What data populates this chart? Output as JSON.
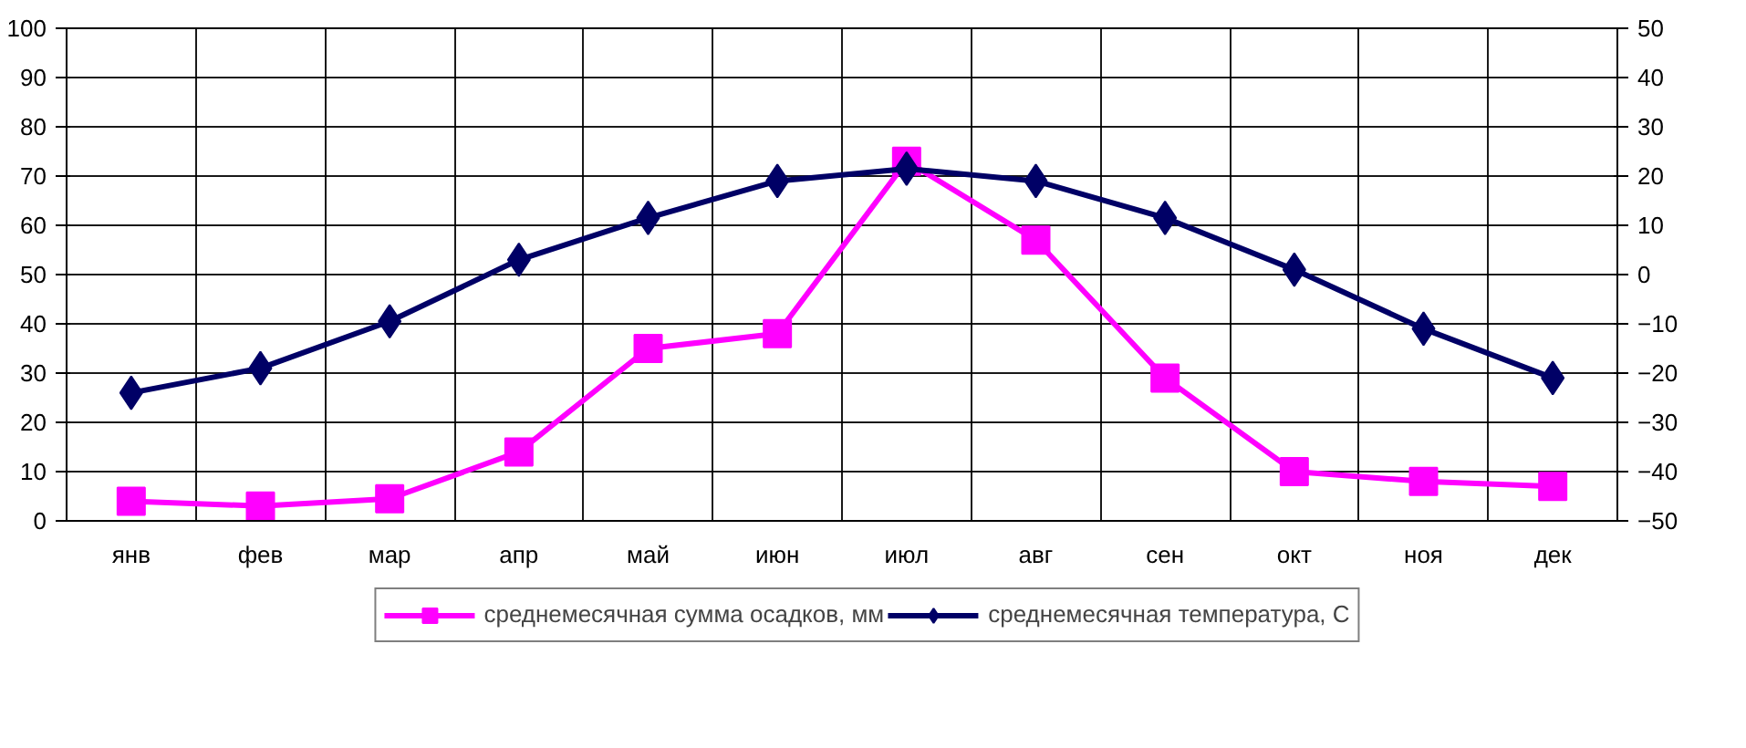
{
  "chart_data": {
    "type": "line",
    "categories": [
      "янв",
      "фев",
      "мар",
      "апр",
      "май",
      "июн",
      "июл",
      "авг",
      "сен",
      "окт",
      "ноя",
      "дек"
    ],
    "series": [
      {
        "name": "среднемесячная сумма осадков, мм",
        "color": "#ff00ff",
        "marker": "square",
        "values": [
          4,
          3,
          4.5,
          14,
          35,
          38,
          73,
          57,
          29,
          10,
          8,
          7
        ]
      },
      {
        "name": "среднемесячная температура, С",
        "color": "#000066",
        "marker": "diamond",
        "axis": "y2",
        "values": [
          -24,
          -19,
          -9.5,
          3,
          11.5,
          19,
          21.5,
          19,
          11.5,
          1,
          -11,
          -21
        ]
      }
    ],
    "ylim": [
      0,
      100
    ],
    "yticks": [
      0,
      10,
      20,
      30,
      40,
      50,
      60,
      70,
      80,
      90,
      100
    ],
    "y2lim": [
      -50,
      50
    ],
    "y2ticks": [
      -50,
      -40,
      -30,
      -20,
      -10,
      0,
      10,
      20,
      30,
      40,
      50
    ],
    "grid": true,
    "legend": "bottom"
  }
}
